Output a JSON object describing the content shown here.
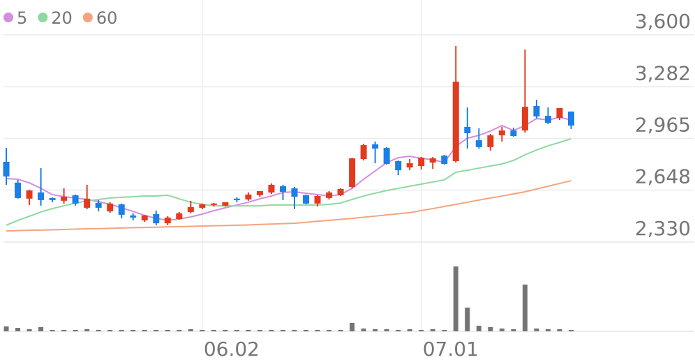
{
  "chart_data": {
    "type": "candlestick",
    "categories": [
      null,
      null,
      null,
      null,
      null,
      null,
      null,
      null,
      null,
      null,
      null,
      null,
      null,
      null,
      null,
      null,
      null,
      "06.02",
      null,
      null,
      null,
      null,
      null,
      null,
      null,
      null,
      null,
      null,
      null,
      null,
      null,
      null,
      null,
      null,
      null,
      null,
      "07.01",
      null,
      null,
      null,
      null,
      null,
      null,
      null,
      null,
      null,
      null,
      null,
      null,
      null
    ],
    "open": [
      2822,
      2694,
      2596,
      2634,
      2600,
      2583,
      2617,
      2540,
      2570,
      2518,
      2561,
      2493,
      2463,
      2501,
      2445,
      2471,
      2514,
      2540,
      2557,
      2553,
      2596,
      2591,
      2617,
      2634,
      2672,
      2659,
      2617,
      2566,
      2600,
      2617,
      2668,
      2839,
      2929,
      2907,
      2826,
      2787,
      2796,
      2817,
      2860,
      2826,
      3036,
      2954,
      2912,
      2984,
      3014,
      3014,
      3164,
      3104,
      3091,
      3130
    ],
    "high": [
      2907,
      2711,
      2651,
      2784,
      2604,
      2659,
      2621,
      2681,
      2587,
      2574,
      2566,
      2506,
      2497,
      2523,
      2488,
      2514,
      2583,
      2566,
      2570,
      2574,
      2604,
      2634,
      2642,
      2689,
      2681,
      2668,
      2621,
      2617,
      2642,
      2659,
      2847,
      2933,
      2946,
      2912,
      2830,
      2839,
      2852,
      2852,
      2864,
      3532,
      3155,
      3027,
      2993,
      3036,
      3031,
      3510,
      3202,
      3155,
      3151,
      3130
    ],
    "low": [
      2681,
      2596,
      2557,
      2553,
      2574,
      2566,
      2553,
      2531,
      2518,
      2510,
      2475,
      2463,
      2454,
      2433,
      2433,
      2467,
      2506,
      2531,
      2548,
      2548,
      2574,
      2583,
      2608,
      2625,
      2587,
      2531,
      2561,
      2548,
      2591,
      2612,
      2659,
      2830,
      2813,
      2805,
      2740,
      2770,
      2775,
      2779,
      2805,
      2817,
      2903,
      2903,
      2890,
      2946,
      2976,
      3001,
      3087,
      3053,
      3078,
      3023
    ],
    "close": [
      2732,
      2600,
      2646,
      2587,
      2587,
      2608,
      2566,
      2596,
      2540,
      2566,
      2497,
      2480,
      2493,
      2445,
      2480,
      2506,
      2544,
      2561,
      2566,
      2574,
      2587,
      2621,
      2642,
      2681,
      2638,
      2608,
      2566,
      2612,
      2634,
      2655,
      2843,
      2924,
      2903,
      2809,
      2770,
      2813,
      2847,
      2843,
      2809,
      3313,
      2997,
      2912,
      2984,
      3014,
      2980,
      3159,
      3100,
      3061,
      3151,
      3044
    ],
    "up_color": "#e23a1e",
    "down_color": "#1a7fe8",
    "series": [
      {
        "name": "5",
        "color": "#d48de0",
        "values": [
          2719,
          2715,
          2693,
          2659,
          2621,
          2608,
          2600,
          2591,
          2578,
          2561,
          2540,
          2518,
          2493,
          2475,
          2463,
          2471,
          2484,
          2501,
          2522,
          2540,
          2557,
          2574,
          2595,
          2612,
          2634,
          2638,
          2629,
          2621,
          2612,
          2621,
          2659,
          2715,
          2766,
          2817,
          2847,
          2856,
          2843,
          2835,
          2817,
          2916,
          2967,
          2984,
          3010,
          3044,
          3014,
          3044,
          3087,
          3078,
          3095,
          3078
        ]
      },
      {
        "name": "20",
        "color": "#8ed9a0",
        "values": [
          2433,
          2463,
          2488,
          2514,
          2535,
          2552,
          2569,
          2582,
          2591,
          2600,
          2604,
          2608,
          2612,
          2612,
          2617,
          2595,
          2574,
          2561,
          2552,
          2552,
          2552,
          2552,
          2552,
          2557,
          2557,
          2557,
          2557,
          2557,
          2561,
          2569,
          2591,
          2612,
          2629,
          2646,
          2659,
          2672,
          2685,
          2698,
          2711,
          2758,
          2770,
          2783,
          2796,
          2809,
          2830,
          2865,
          2894,
          2920,
          2941,
          2963
        ]
      },
      {
        "name": "60",
        "color": "#f4a47e",
        "values": [
          2398,
          2400,
          2402,
          2403,
          2405,
          2407,
          2409,
          2411,
          2412,
          2414,
          2416,
          2418,
          2419,
          2421,
          2423,
          2424,
          2426,
          2428,
          2430,
          2431,
          2433,
          2435,
          2438,
          2440,
          2443,
          2445,
          2451,
          2457,
          2463,
          2469,
          2475,
          2482,
          2489,
          2496,
          2503,
          2510,
          2523,
          2535,
          2548,
          2561,
          2574,
          2587,
          2600,
          2612,
          2625,
          2638,
          2655,
          2672,
          2689,
          2706
        ]
      }
    ],
    "volume": [
      7,
      5,
      3,
      6,
      2,
      2,
      2,
      3,
      2,
      2,
      2,
      2,
      2,
      2,
      2,
      2,
      3,
      2,
      2,
      2,
      2,
      2,
      2,
      2,
      2,
      2,
      2,
      2,
      2,
      2,
      12,
      4,
      3,
      3,
      2,
      3,
      2,
      3,
      2,
      93,
      34,
      8,
      6,
      4,
      3,
      67,
      4,
      3,
      3,
      2
    ],
    "volume_color": "#747474",
    "vlim": [
      0,
      100
    ],
    "ylim": [
      2330,
      3600
    ],
    "yticks": [
      {
        "value": 2330,
        "label": "2,330"
      },
      {
        "value": 2648,
        "label": "2,648"
      },
      {
        "value": 2965,
        "label": "2,965"
      },
      {
        "value": 3282,
        "label": "3,282"
      },
      {
        "value": 3600,
        "label": "3,600"
      }
    ],
    "grid": true
  }
}
